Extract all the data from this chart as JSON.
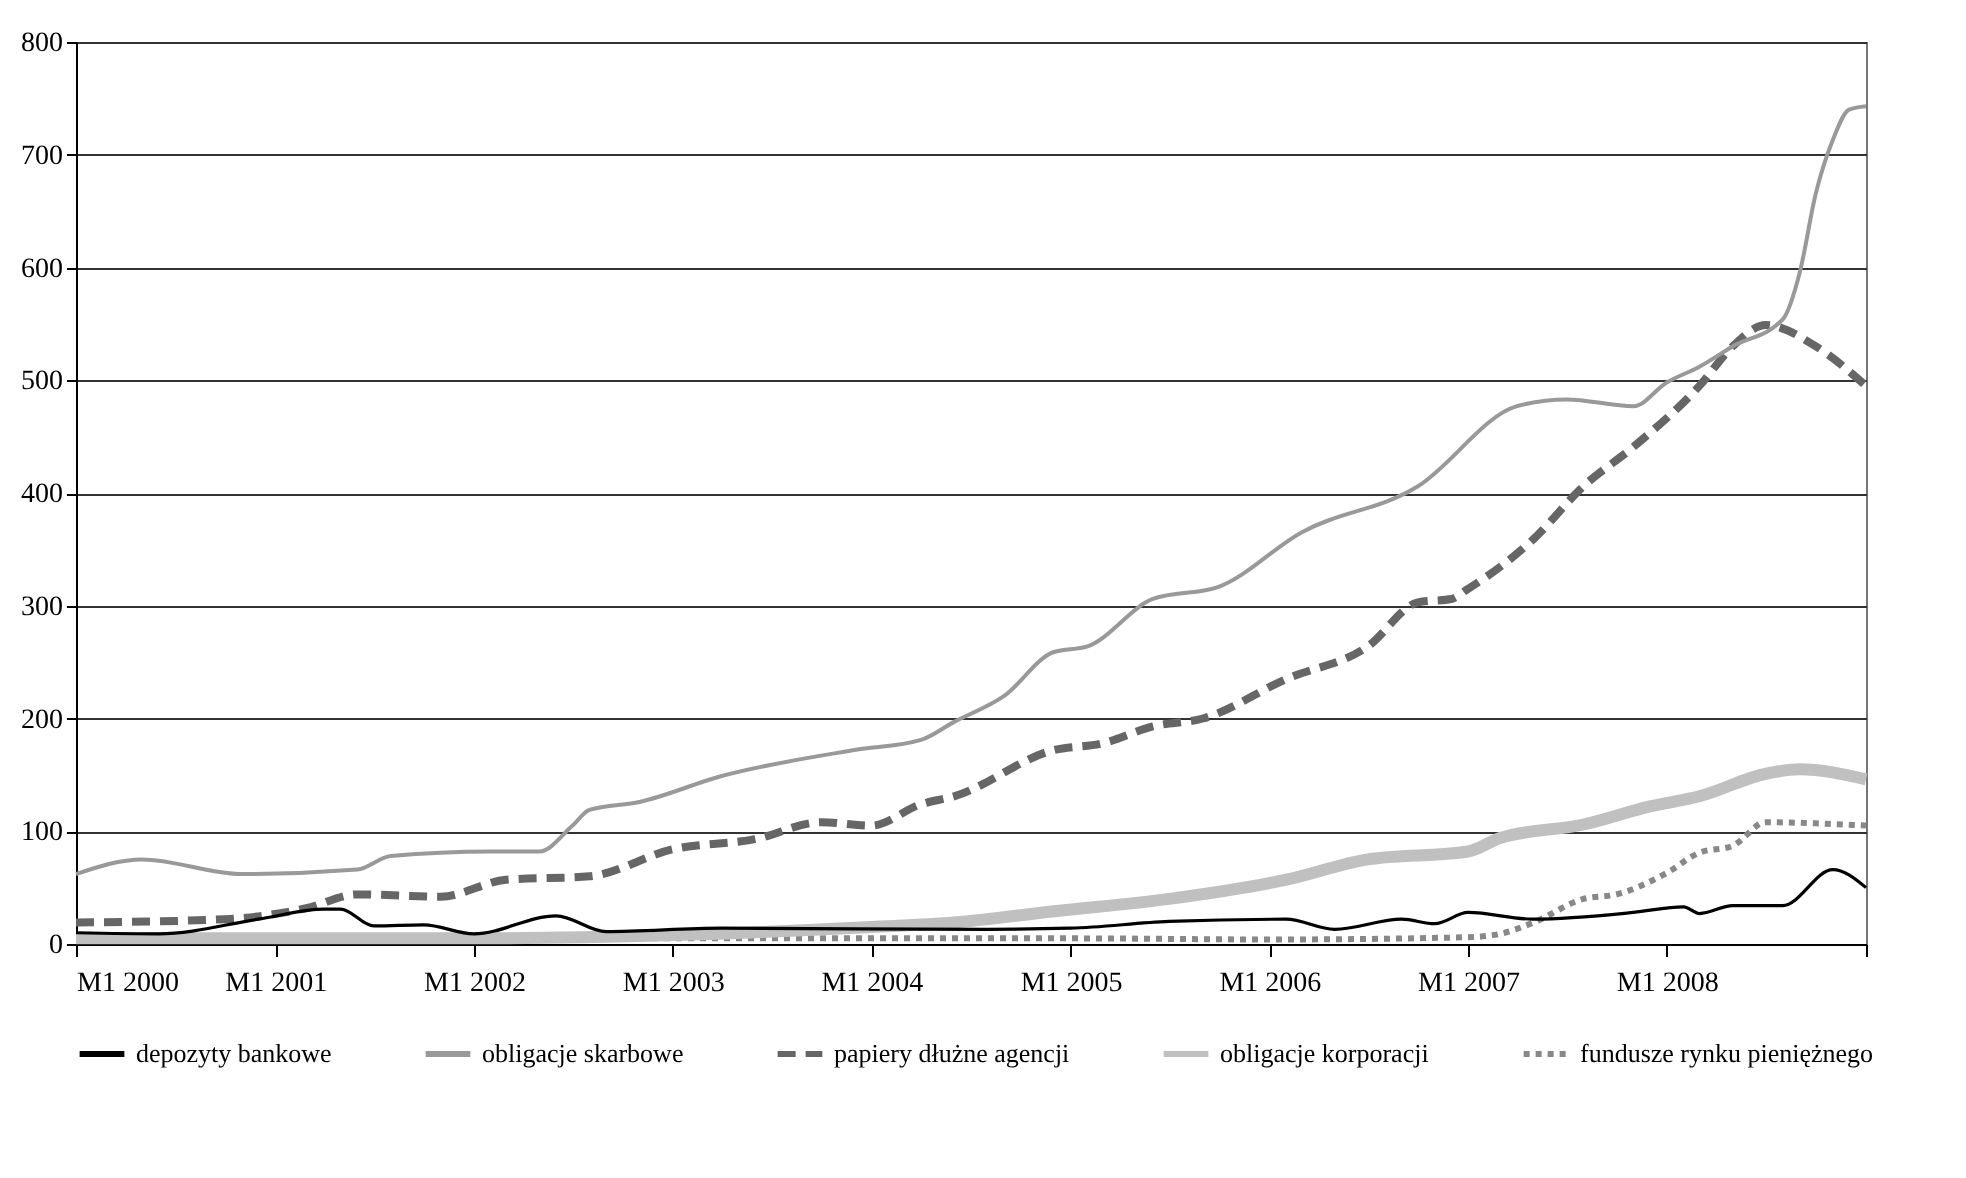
{
  "chart_data": {
    "type": "line",
    "ylim": [
      0,
      800
    ],
    "yticks": [
      0,
      100,
      200,
      300,
      400,
      500,
      600,
      700,
      800
    ],
    "xlim": [
      "2000-01",
      "2009-01"
    ],
    "xticks": [
      {
        "value": "2000-01",
        "label": "M1 2000"
      },
      {
        "value": "2001-01",
        "label": "M1 2001"
      },
      {
        "value": "2002-01",
        "label": "M1 2002"
      },
      {
        "value": "2003-01",
        "label": "M1 2003"
      },
      {
        "value": "2004-01",
        "label": "M1 2004"
      },
      {
        "value": "2005-01",
        "label": "M1 2005"
      },
      {
        "value": "2006-01",
        "label": "M1 2006"
      },
      {
        "value": "2007-01",
        "label": "M1 2007"
      },
      {
        "value": "2008-01",
        "label": "M1 2008"
      },
      {
        "value": "2009-01",
        "label": null
      }
    ],
    "grid": "y",
    "legend": "bottom",
    "marker": "none",
    "series": [
      {
        "name": "depozyty bankowe",
        "color": "#000000",
        "line_style": "solid",
        "x": [
          "2000-01",
          "2000-06",
          "2000-12",
          "2001-04",
          "2001-05",
          "2001-07",
          "2001-10",
          "2002-01",
          "2002-06",
          "2002-09",
          "2003-04",
          "2004-08",
          "2005-01",
          "2005-07",
          "2006-02",
          "2006-05",
          "2006-09",
          "2006-11",
          "2007-01",
          "2007-05",
          "2007-11",
          "2008-02",
          "2008-03",
          "2008-05",
          "2008-08",
          "2008-11",
          "2009-01"
        ],
        "values": [
          10,
          9,
          22,
          31,
          31,
          16,
          17,
          9,
          25,
          11,
          14,
          13,
          14,
          20,
          22,
          13,
          22,
          18,
          28,
          22,
          28,
          33,
          27,
          34,
          34,
          66,
          50
        ]
      },
      {
        "name": "obligacje skarbowe",
        "color": "#999999",
        "line_style": "solid",
        "x": [
          "2000-01",
          "2000-05",
          "2000-11",
          "2001-06",
          "2001-08",
          "2002-02",
          "2002-05",
          "2002-07",
          "2002-08",
          "2002-11",
          "2003-04",
          "2003-12",
          "2004-04",
          "2004-06",
          "2004-09",
          "2004-12",
          "2005-02",
          "2005-06",
          "2005-10",
          "2006-03",
          "2006-10",
          "2007-04",
          "2007-07",
          "2007-11",
          "2008-01",
          "2008-03",
          "2008-05",
          "2008-08",
          "2008-09",
          "2008-10",
          "2008-11",
          "2008-12",
          "2009-01"
        ],
        "values": [
          62,
          75,
          62,
          66,
          78,
          82,
          82,
          105,
          119,
          126,
          149,
          172,
          181,
          197,
          220,
          259,
          264,
          306,
          317,
          365,
          406,
          477,
          483,
          477,
          498,
          512,
          530,
          554,
          595,
          666,
          713,
          740,
          743
        ]
      },
      {
        "name": "papiery dłużne agencji",
        "color": "#666666",
        "line_style": "dashed",
        "x": [
          "2000-01",
          "2000-10",
          "2001-03",
          "2001-06",
          "2001-11",
          "2002-03",
          "2002-08",
          "2003-01",
          "2003-06",
          "2003-10",
          "2004-01",
          "2004-04",
          "2004-06",
          "2004-12",
          "2005-03",
          "2005-06",
          "2005-09",
          "2006-02",
          "2006-07",
          "2006-10",
          "2006-12",
          "2007-01",
          "2007-05",
          "2007-08",
          "2007-11",
          "2008-03",
          "2008-05",
          "2008-07",
          "2008-10",
          "2009-01"
        ],
        "values": [
          19,
          22,
          32,
          44,
          42,
          57,
          60,
          84,
          93,
          108,
          105,
          124,
          131,
          172,
          178,
          193,
          200,
          235,
          264,
          303,
          306,
          315,
          359,
          406,
          441,
          495,
          530,
          549,
          530,
          495
        ]
      },
      {
        "name": "obligacje korporacji",
        "color": "#c0c0c0",
        "line_style": "solid",
        "x": [
          "2000-01",
          "2002-01",
          "2003-01",
          "2004-01",
          "2004-06",
          "2004-12",
          "2005-07",
          "2006-02",
          "2006-07",
          "2007-01",
          "2007-03",
          "2007-08",
          "2007-12",
          "2008-03",
          "2008-07",
          "2008-09",
          "2009-01"
        ],
        "values": [
          5,
          5,
          8,
          15,
          19,
          29,
          40,
          57,
          75,
          82,
          94,
          106,
          122,
          131,
          151,
          155,
          146
        ]
      },
      {
        "name": "fundusze rynku pieniężnego",
        "color": "#888888",
        "line_style": "dotted",
        "x": [
          "2000-01",
          "2003-01",
          "2005-01",
          "2006-01",
          "2007-01",
          "2007-03",
          "2007-05",
          "2007-08",
          "2007-10",
          "2008-01",
          "2008-03",
          "2008-05",
          "2008-07",
          "2008-10",
          "2009-01"
        ],
        "values": [
          7,
          5,
          5,
          4,
          6,
          9,
          19,
          40,
          44,
          63,
          81,
          87,
          108,
          107,
          105
        ]
      }
    ]
  }
}
